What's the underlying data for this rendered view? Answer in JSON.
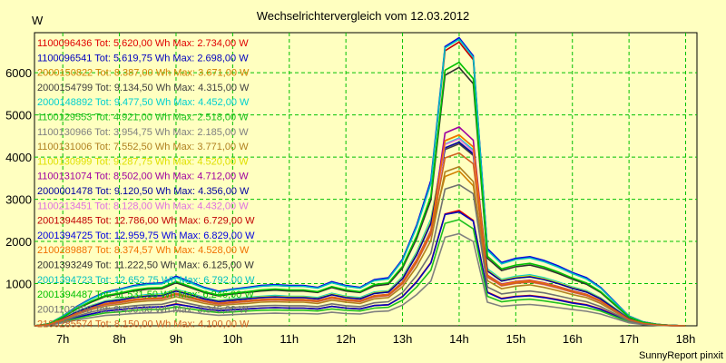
{
  "chart_data": {
    "type": "line",
    "title": "Wechselrichtervergleich vom 12.03.2012",
    "ylabel": "W",
    "xlabel": "",
    "credit": "SunnyReport pinxit",
    "x_ticks": [
      "7h",
      "8h",
      "9h",
      "10h",
      "11h",
      "12h",
      "13h",
      "14h",
      "15h",
      "16h",
      "17h",
      "18h"
    ],
    "y_ticks": [
      1000,
      2000,
      3000,
      4000,
      5000,
      6000
    ],
    "xlim": [
      6.5,
      18.2
    ],
    "ylim": [
      0,
      6950
    ],
    "grid": true,
    "legend_position": "top-left",
    "x": [
      6.5,
      6.75,
      7.0,
      7.25,
      7.5,
      7.75,
      8.0,
      8.25,
      8.5,
      8.75,
      9.0,
      9.25,
      9.5,
      9.75,
      10.0,
      10.25,
      10.5,
      10.75,
      11.0,
      11.25,
      11.5,
      11.75,
      12.0,
      12.25,
      12.5,
      12.75,
      13.0,
      13.25,
      13.5,
      13.75,
      14.0,
      14.25,
      14.5,
      14.75,
      15.0,
      15.25,
      15.5,
      15.75,
      16.0,
      16.25,
      16.5,
      16.75,
      17.0,
      17.25,
      17.5,
      17.75,
      18.0
    ],
    "series": [
      {
        "name": "1100096436",
        "label": "1100096436 Tot: 5.620,00 Wh Max: 2.734,00 W",
        "color": "#e00000",
        "values": [
          0,
          20,
          100,
          200,
          280,
          350,
          380,
          420,
          440,
          450,
          520,
          460,
          400,
          360,
          380,
          400,
          420,
          430,
          420,
          420,
          400,
          460,
          420,
          400,
          480,
          500,
          700,
          1050,
          1500,
          2650,
          2734,
          2500,
          800,
          650,
          700,
          720,
          680,
          620,
          550,
          500,
          400,
          250,
          100,
          40,
          15,
          5,
          0
        ]
      },
      {
        "name": "1100096541",
        "label": "1100096541 Tot: 5.619,75 Wh Max: 2.698,00 W",
        "color": "#0000c0",
        "values": [
          0,
          20,
          100,
          200,
          280,
          350,
          380,
          420,
          440,
          450,
          510,
          460,
          400,
          360,
          380,
          400,
          420,
          430,
          420,
          420,
          400,
          460,
          420,
          400,
          480,
          500,
          690,
          1040,
          1490,
          2640,
          2698,
          2480,
          790,
          640,
          690,
          710,
          670,
          610,
          540,
          490,
          390,
          240,
          100,
          40,
          15,
          5,
          0
        ]
      },
      {
        "name": "2000150822",
        "label": "2000150822 Tot: 8.387,00 Wh Max: 3.671,00 W",
        "color": "#d08000",
        "values": [
          0,
          30,
          150,
          300,
          420,
          520,
          570,
          620,
          650,
          660,
          760,
          680,
          590,
          530,
          560,
          590,
          620,
          630,
          620,
          620,
          590,
          680,
          620,
          590,
          710,
          740,
          1030,
          1550,
          2240,
          3540,
          3671,
          3320,
          1190,
          970,
          1040,
          1070,
          1010,
          920,
          820,
          740,
          590,
          370,
          150,
          60,
          22,
          8,
          0
        ]
      },
      {
        "name": "2000154799",
        "label": "2000154799 Tot: 9.134,50 Wh Max: 4.315,00 W",
        "color": "#404040",
        "values": [
          0,
          35,
          160,
          330,
          460,
          570,
          620,
          680,
          710,
          720,
          830,
          740,
          640,
          580,
          610,
          640,
          680,
          690,
          680,
          680,
          640,
          740,
          680,
          640,
          770,
          800,
          1120,
          1690,
          2440,
          4180,
          4315,
          4040,
          1300,
          1060,
          1130,
          1170,
          1100,
          1000,
          890,
          800,
          640,
          400,
          160,
          65,
          24,
          8,
          0
        ]
      },
      {
        "name": "2000148892",
        "label": "2000148892 Tot: 9.477,50 Wh Max: 4.452,00 W",
        "color": "#00d0d0",
        "values": [
          0,
          35,
          170,
          340,
          480,
          590,
          640,
          700,
          740,
          750,
          860,
          770,
          670,
          600,
          640,
          670,
          700,
          720,
          700,
          700,
          670,
          770,
          700,
          670,
          800,
          830,
          1160,
          1750,
          2530,
          4310,
          4452,
          4170,
          1350,
          1100,
          1170,
          1210,
          1140,
          1040,
          920,
          830,
          660,
          420,
          170,
          68,
          25,
          8,
          0
        ]
      },
      {
        "name": "1100129553",
        "label": "1100129553 Tot: 4.921,00 Wh Max: 2.518,00 W",
        "color": "#20c020",
        "values": [
          0,
          18,
          90,
          175,
          245,
          305,
          330,
          365,
          385,
          390,
          450,
          400,
          350,
          315,
          330,
          350,
          365,
          375,
          365,
          365,
          350,
          400,
          365,
          350,
          420,
          440,
          610,
          920,
          1320,
          2430,
          2518,
          2300,
          700,
          570,
          610,
          630,
          590,
          540,
          480,
          430,
          350,
          220,
          88,
          35,
          13,
          4,
          0
        ]
      },
      {
        "name": "1100130966",
        "label": "1100130966 Tot: 3.954,75 Wh Max: 2.185,00 W",
        "color": "#808080",
        "values": [
          0,
          15,
          70,
          140,
          195,
          245,
          265,
          290,
          305,
          310,
          360,
          320,
          280,
          250,
          265,
          280,
          290,
          300,
          290,
          290,
          280,
          320,
          290,
          280,
          335,
          350,
          490,
          740,
          1060,
          2100,
          2185,
          2000,
          560,
          460,
          490,
          505,
          475,
          430,
          385,
          345,
          280,
          175,
          70,
          28,
          10,
          3,
          0
        ]
      },
      {
        "name": "1100131006",
        "label": "1100131006 Tot: 7.552,50 Wh Max: 3.771,00 W",
        "color": "#b08020",
        "values": [
          0,
          27,
          135,
          270,
          380,
          470,
          510,
          560,
          590,
          600,
          690,
          610,
          530,
          480,
          510,
          530,
          560,
          570,
          560,
          560,
          530,
          610,
          560,
          530,
          640,
          670,
          930,
          1400,
          2020,
          3650,
          3771,
          3420,
          1070,
          880,
          940,
          970,
          910,
          830,
          740,
          670,
          530,
          330,
          135,
          54,
          20,
          7,
          0
        ]
      },
      {
        "name": "1100130999",
        "label": "1100130999 Tot: 9.287,75 Wh Max: 4.520,00 W",
        "color": "#e0e000",
        "values": [
          0,
          33,
          165,
          330,
          465,
          575,
          625,
          685,
          720,
          730,
          845,
          750,
          650,
          590,
          625,
          650,
          685,
          700,
          685,
          685,
          650,
          750,
          685,
          650,
          780,
          815,
          1135,
          1715,
          2475,
          4380,
          4520,
          4240,
          1320,
          1080,
          1150,
          1185,
          1115,
          1020,
          905,
          815,
          650,
          405,
          165,
          66,
          24,
          8,
          0
        ]
      },
      {
        "name": "1100131074",
        "label": "1100131074 Tot: 8.502,00 Wh Max: 4.712,00 W",
        "color": "#a000a0",
        "values": [
          0,
          30,
          150,
          300,
          425,
          525,
          570,
          625,
          655,
          665,
          770,
          685,
          595,
          535,
          570,
          595,
          625,
          640,
          625,
          625,
          595,
          685,
          625,
          595,
          715,
          745,
          1040,
          1570,
          2260,
          4570,
          4712,
          4400,
          1200,
          990,
          1050,
          1080,
          1020,
          930,
          830,
          745,
          595,
          370,
          150,
          60,
          22,
          7,
          0
        ]
      },
      {
        "name": "2000001478",
        "label": "2000001478 Tot: 9.120,50 Wh Max: 4.356,00 W",
        "color": "#0000a0",
        "values": [
          0,
          33,
          162,
          325,
          455,
          565,
          610,
          670,
          705,
          715,
          825,
          735,
          640,
          575,
          610,
          640,
          670,
          685,
          670,
          670,
          640,
          735,
          670,
          640,
          765,
          800,
          1115,
          1685,
          2430,
          4220,
          4356,
          4080,
          1300,
          1060,
          1130,
          1160,
          1095,
          1000,
          890,
          800,
          640,
          400,
          162,
          65,
          24,
          8,
          0
        ]
      },
      {
        "name": "1100213451",
        "label": "1100213451 Tot: 8.128,00 Wh Max: 4.432,00 W",
        "color": "#e070e0",
        "values": [
          0,
          29,
          145,
          290,
          405,
          500,
          545,
          600,
          630,
          640,
          735,
          655,
          570,
          510,
          545,
          570,
          600,
          610,
          600,
          600,
          570,
          655,
          600,
          570,
          685,
          715,
          995,
          1500,
          2160,
          4300,
          4432,
          4130,
          1150,
          945,
          1005,
          1035,
          975,
          890,
          795,
          715,
          570,
          355,
          145,
          58,
          21,
          7,
          0
        ]
      },
      {
        "name": "2001394485",
        "label": "2001394485 Tot: 12.786,00 Wh Max: 6.729,00 W",
        "color": "#c00000",
        "values": [
          0,
          46,
          228,
          456,
          640,
          790,
          860,
          940,
          990,
          1000,
          1160,
          1030,
          900,
          810,
          860,
          900,
          940,
          960,
          940,
          940,
          900,
          1030,
          940,
          900,
          1080,
          1120,
          1560,
          2360,
          3400,
          6520,
          6729,
          6310,
          1800,
          1480,
          1580,
          1620,
          1530,
          1400,
          1250,
          1120,
          900,
          560,
          228,
          91,
          34,
          11,
          0
        ]
      },
      {
        "name": "2001394725",
        "label": "2001394725 Tot: 12.959,75 Wh Max: 6.829,00 W",
        "color": "#0000e0",
        "values": [
          0,
          46,
          231,
          462,
          650,
          800,
          870,
          955,
          1000,
          1015,
          1175,
          1045,
          910,
          820,
          870,
          910,
          955,
          975,
          955,
          955,
          910,
          1045,
          955,
          910,
          1095,
          1140,
          1580,
          2390,
          3450,
          6620,
          6829,
          6400,
          1830,
          1500,
          1600,
          1640,
          1550,
          1420,
          1265,
          1140,
          910,
          570,
          231,
          92,
          34,
          11,
          0
        ]
      },
      {
        "name": "2100289887",
        "label": "2100289887 Tot: 8.374,57 Wh Max: 4.528,00 W",
        "color": "#f07000",
        "values": [
          0,
          30,
          150,
          300,
          420,
          520,
          565,
          620,
          650,
          660,
          765,
          680,
          590,
          530,
          565,
          590,
          620,
          635,
          620,
          620,
          590,
          680,
          620,
          590,
          710,
          740,
          1030,
          1555,
          2240,
          4390,
          4528,
          4240,
          1190,
          975,
          1040,
          1070,
          1010,
          920,
          820,
          740,
          590,
          370,
          150,
          60,
          22,
          7,
          0
        ]
      },
      {
        "name": "2001393249",
        "label": "2001393249 Tot: 11.222,50 Wh Max: 6.125,00 W",
        "color": "#303030",
        "values": [
          0,
          40,
          200,
          400,
          560,
          695,
          755,
          825,
          870,
          880,
          1020,
          905,
          790,
          710,
          755,
          790,
          825,
          845,
          825,
          825,
          790,
          905,
          825,
          790,
          945,
          985,
          1370,
          2070,
          2985,
          5940,
          6125,
          5740,
          1600,
          1310,
          1400,
          1440,
          1355,
          1240,
          1105,
          985,
          790,
          495,
          200,
          80,
          30,
          10,
          0
        ]
      },
      {
        "name": "2001394723",
        "label": "2001394723 Tot: 12.652,75 Wh Max: 6.792,00 W",
        "color": "#00c0c0",
        "values": [
          0,
          45,
          226,
          452,
          635,
          785,
          855,
          935,
          980,
          995,
          1150,
          1020,
          890,
          800,
          855,
          890,
          935,
          955,
          935,
          935,
          890,
          1020,
          935,
          890,
          1070,
          1110,
          1550,
          2340,
          3375,
          6590,
          6792,
          6370,
          1790,
          1470,
          1570,
          1610,
          1520,
          1390,
          1240,
          1110,
          890,
          555,
          226,
          90,
          33,
          11,
          0
        ]
      },
      {
        "name": "2001394487",
        "label": "2001394487 Tot: 11.531,50 Wh Max: 6.246,00 W",
        "color": "#00c000",
        "values": [
          0,
          41,
          206,
          412,
          580,
          715,
          775,
          850,
          895,
          905,
          1050,
          930,
          810,
          730,
          775,
          810,
          850,
          870,
          850,
          850,
          810,
          930,
          850,
          810,
          975,
          1015,
          1410,
          2130,
          3075,
          6060,
          6246,
          5860,
          1650,
          1350,
          1440,
          1480,
          1395,
          1275,
          1135,
          1015,
          810,
          510,
          206,
          82,
          30,
          10,
          0
        ]
      },
      {
        "name": "2001102358",
        "label": "2001102358 Tot: 6.450,00 Wh Max: 3.345,00 W",
        "color": "#707070",
        "values": [
          0,
          23,
          115,
          230,
          325,
          400,
          435,
          475,
          500,
          510,
          590,
          520,
          455,
          410,
          435,
          455,
          475,
          485,
          475,
          475,
          455,
          520,
          475,
          455,
          545,
          570,
          790,
          1195,
          1720,
          3240,
          3345,
          3130,
          920,
          755,
          800,
          825,
          780,
          710,
          635,
          570,
          455,
          285,
          115,
          46,
          17,
          6,
          0
        ]
      },
      {
        "name": "2100285574",
        "label": "2100285574 Tot: 8.150,00 Wh Max: 4.100,00 W",
        "color": "#d06020",
        "values": [
          0,
          29,
          146,
          292,
          410,
          505,
          550,
          600,
          635,
          645,
          745,
          660,
          575,
          515,
          550,
          575,
          600,
          615,
          600,
          600,
          575,
          660,
          600,
          575,
          690,
          720,
          1000,
          1510,
          2175,
          3980,
          4100,
          3840,
          1160,
          950,
          1010,
          1040,
          985,
          900,
          800,
          720,
          575,
          360,
          146,
          58,
          21,
          7,
          0
        ]
      }
    ]
  }
}
